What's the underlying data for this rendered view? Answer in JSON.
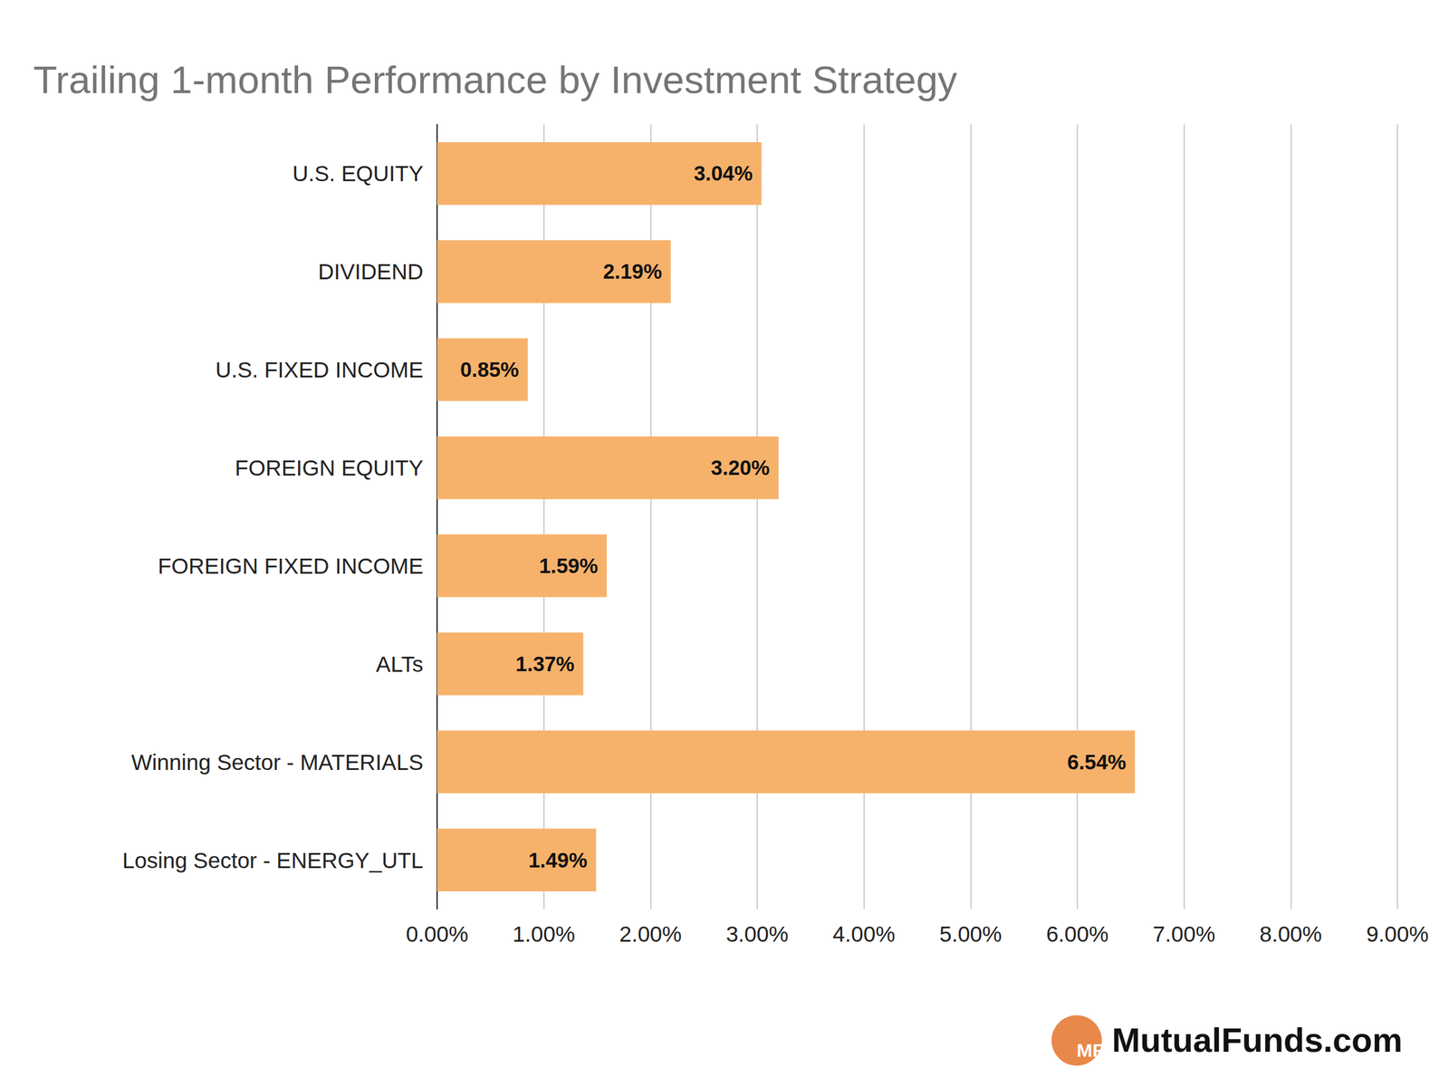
{
  "chart_data": {
    "type": "bar",
    "title": "Trailing 1-month Performance by Investment Strategy",
    "orientation": "horizontal",
    "categories": [
      "U.S. EQUITY",
      "DIVIDEND",
      "U.S. FIXED INCOME",
      "FOREIGN EQUITY",
      "FOREIGN FIXED INCOME",
      "ALTs",
      "Winning Sector - MATERIALS",
      "Losing Sector - ENERGY_UTL"
    ],
    "values": [
      3.04,
      2.19,
      0.85,
      3.2,
      1.59,
      1.37,
      6.54,
      1.49
    ],
    "value_labels": [
      "3.04%",
      "2.19%",
      "0.85%",
      "3.20%",
      "1.59%",
      "1.37%",
      "6.54%",
      "1.49%"
    ],
    "color": "#f6b26b",
    "data_labels": true,
    "xlim": [
      0,
      9
    ],
    "xticks": [
      {
        "value": 0,
        "label": "0.00%"
      },
      {
        "value": 1,
        "label": "1.00%"
      },
      {
        "value": 2,
        "label": "2.00%"
      },
      {
        "value": 3,
        "label": "3.00%"
      },
      {
        "value": 4,
        "label": "4.00%"
      },
      {
        "value": 5,
        "label": "5.00%"
      },
      {
        "value": 6,
        "label": "6.00%"
      },
      {
        "value": 7,
        "label": "7.00%"
      },
      {
        "value": 8,
        "label": "8.00%"
      },
      {
        "value": 9,
        "label": "9.00%"
      }
    ],
    "grid": true,
    "annotations": [
      "MF",
      "MutualFunds.com"
    ]
  }
}
